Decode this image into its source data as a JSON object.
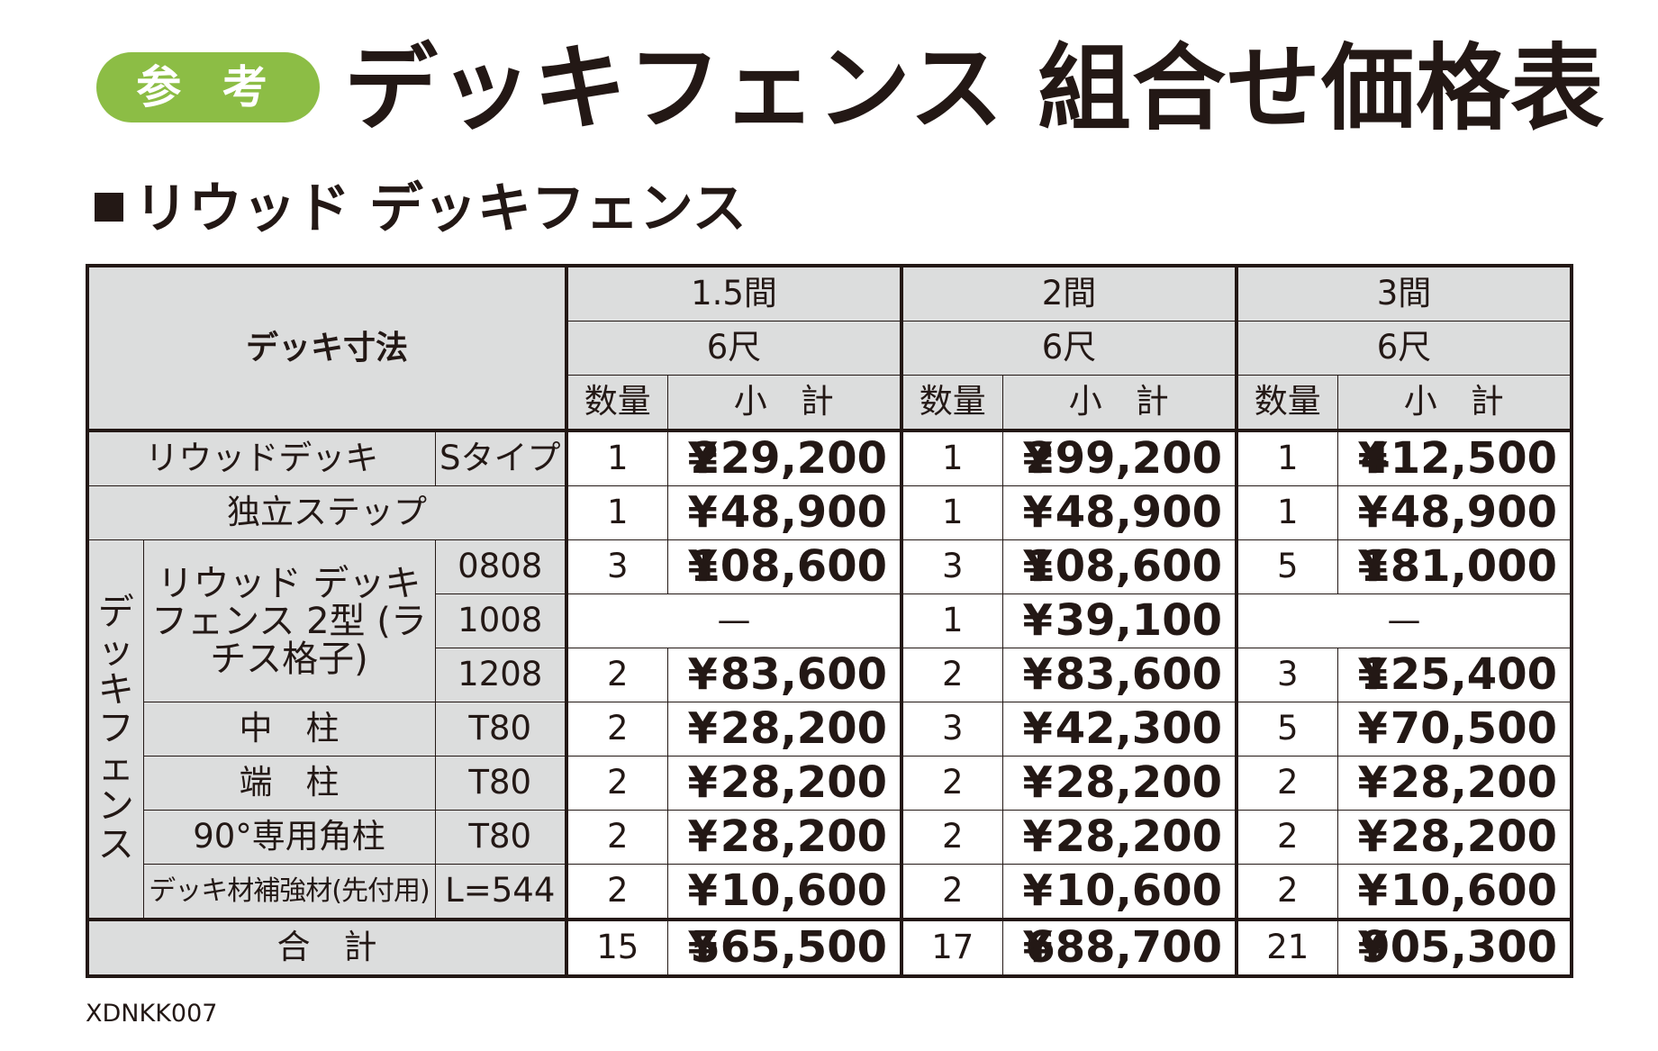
{
  "header": {
    "badge": "参 考",
    "title": "デッキフェンス 組合せ価格表",
    "section_title": "リウッド デッキフェンス"
  },
  "table": {
    "corner_label": "デッキ寸法",
    "columns": [
      {
        "span": "1.5間",
        "size": "6尺",
        "qty_label": "数量",
        "subtotal_label": "小　計"
      },
      {
        "span": "2間",
        "size": "6尺",
        "qty_label": "数量",
        "subtotal_label": "小　計"
      },
      {
        "span": "3間",
        "size": "6尺",
        "qty_label": "数量",
        "subtotal_label": "小　計"
      }
    ],
    "yen": "¥",
    "fence_group_label": "デッキフェンス",
    "fence_product_label": "リウッド デッキフェンス 2型 (ラチス格子)",
    "rows": [
      {
        "name": "リウッドデッキ",
        "spec": "Sタイプ",
        "cells": [
          {
            "qty": "1",
            "price": "229,200"
          },
          {
            "qty": "1",
            "price": "299,200"
          },
          {
            "qty": "1",
            "price": "412,500"
          }
        ]
      },
      {
        "name": "独立ステップ",
        "spec": "",
        "cells": [
          {
            "qty": "1",
            "price": "48,900"
          },
          {
            "qty": "1",
            "price": "48,900"
          },
          {
            "qty": "1",
            "price": "48,900"
          }
        ]
      },
      {
        "name": "",
        "spec": "0808",
        "cells": [
          {
            "qty": "3",
            "price": "108,600"
          },
          {
            "qty": "3",
            "price": "108,600"
          },
          {
            "qty": "5",
            "price": "181,000"
          }
        ]
      },
      {
        "name": "",
        "spec": "1008",
        "cells": [
          {
            "dash": "—"
          },
          {
            "qty": "1",
            "price": "39,100"
          },
          {
            "dash": "—"
          }
        ]
      },
      {
        "name": "",
        "spec": "1208",
        "cells": [
          {
            "qty": "2",
            "price": "83,600"
          },
          {
            "qty": "2",
            "price": "83,600"
          },
          {
            "qty": "3",
            "price": "125,400"
          }
        ]
      },
      {
        "name": "中　柱",
        "spec": "T80",
        "cells": [
          {
            "qty": "2",
            "price": "28,200"
          },
          {
            "qty": "3",
            "price": "42,300"
          },
          {
            "qty": "5",
            "price": "70,500"
          }
        ]
      },
      {
        "name": "端　柱",
        "spec": "T80",
        "cells": [
          {
            "qty": "2",
            "price": "28,200"
          },
          {
            "qty": "2",
            "price": "28,200"
          },
          {
            "qty": "2",
            "price": "28,200"
          }
        ]
      },
      {
        "name": "90°専用角柱",
        "spec": "T80",
        "cells": [
          {
            "qty": "2",
            "price": "28,200"
          },
          {
            "qty": "2",
            "price": "28,200"
          },
          {
            "qty": "2",
            "price": "28,200"
          }
        ]
      },
      {
        "name": "デッキ材補強材(先付用)",
        "spec": "L=544",
        "cells": [
          {
            "qty": "2",
            "price": "10,600"
          },
          {
            "qty": "2",
            "price": "10,600"
          },
          {
            "qty": "2",
            "price": "10,600"
          }
        ]
      }
    ],
    "total": {
      "label": "合　計",
      "cells": [
        {
          "qty": "15",
          "price": "565,500"
        },
        {
          "qty": "17",
          "price": "688,700"
        },
        {
          "qty": "21",
          "price": "905,300"
        }
      ]
    }
  },
  "footer": {
    "code": "XDNKK007"
  }
}
